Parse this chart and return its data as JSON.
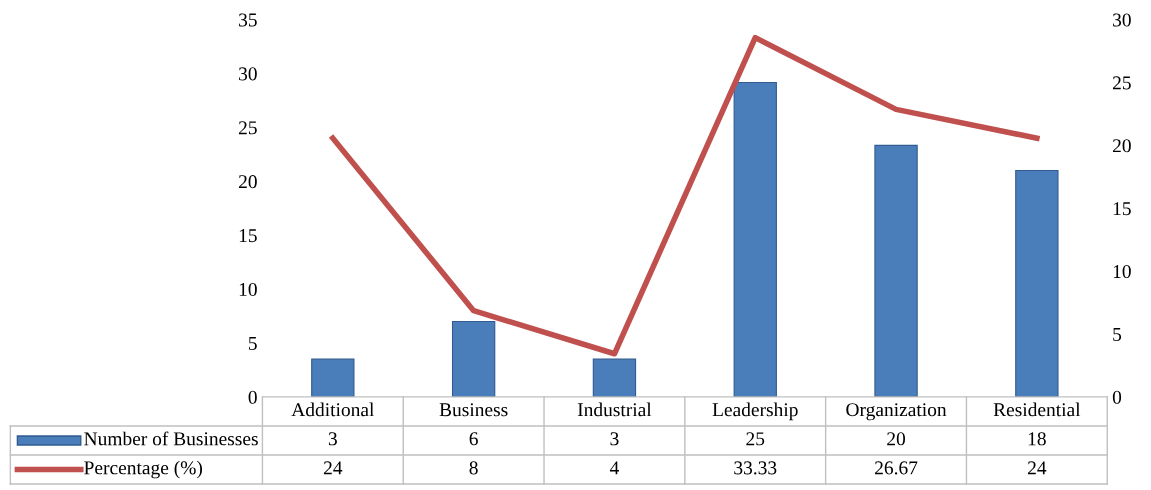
{
  "chart_data": {
    "type": "bar",
    "categories": [
      "Additional",
      "Business",
      "Industrial",
      "Leadership",
      "Organization",
      "Residential"
    ],
    "series": [
      {
        "name": "Number of Businesses",
        "axis": "y2",
        "color": "#4a7ebb",
        "values": [
          3,
          6,
          3,
          25,
          20,
          18
        ]
      },
      {
        "name": "Percentage (%)",
        "type": "line",
        "color": "#c0504d",
        "values": [
          24,
          8,
          4,
          33.33,
          26.67,
          24
        ]
      }
    ],
    "ylim": [
      0,
      35
    ],
    "yticks": [
      0,
      5,
      10,
      15,
      20,
      25,
      30,
      35
    ],
    "y2lim": [
      0,
      30
    ],
    "y2ticks": [
      0,
      5,
      10,
      15,
      20,
      25,
      30
    ],
    "grid": false,
    "legend": "bottom",
    "data_labels": true,
    "marker": "none",
    "line_style": "solid"
  }
}
